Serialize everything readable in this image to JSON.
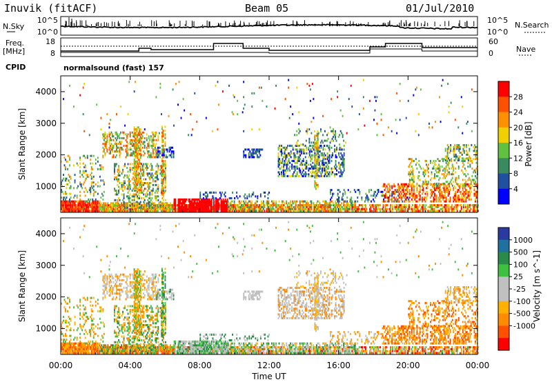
{
  "header": {
    "station": "Inuvik (fitACF)",
    "beam": "Beam 05",
    "date": "01/Jul/2010"
  },
  "noise_panel": {
    "left_label": "N.Sky",
    "left_ticks": [
      "10^5",
      "10^0"
    ],
    "right_label": "N.Search",
    "right_ticks": [
      "10^5",
      "10^0"
    ]
  },
  "freq_panel": {
    "left_label_1": "Freq.",
    "left_label_2": "[MHz]",
    "left_ticks": [
      "18",
      "8"
    ],
    "right_label": "Nave",
    "right_ticks": [
      "60",
      "0"
    ],
    "cpid_label": "CPID",
    "cpid_value": "normalsound (fast) 157"
  },
  "colors": {
    "power_scale": [
      "#0000ff",
      "#2050a0",
      "#3a8a60",
      "#60c040",
      "#f0d000",
      "#ff9000",
      "#ff5000",
      "#ff0000"
    ],
    "velocity_scale": [
      "#ff0000",
      "#ff5000",
      "#ff8c00",
      "#ffb000",
      "#c0c0c0",
      "#c0c0c0",
      "#40c040",
      "#2a8a4a",
      "#2070a0",
      "#2a3aa0"
    ]
  },
  "chart_data": [
    {
      "type": "heatmap",
      "name": "power",
      "ylabel": "Slant Range [km]",
      "ylim": [
        180,
        4500
      ],
      "yticks": [
        "1000",
        "2000",
        "3000",
        "4000"
      ],
      "ytick_values": [
        1000,
        2000,
        3000,
        4000
      ],
      "colorbar_label": "Power [dB]",
      "colorbar_ticks": [
        "4",
        "8",
        "12",
        "16",
        "20",
        "24",
        "28"
      ]
    },
    {
      "type": "heatmap",
      "name": "velocity",
      "ylabel": "Slant Range [km]",
      "ylim": [
        180,
        4500
      ],
      "yticks": [
        "1000",
        "2000",
        "3000",
        "4000"
      ],
      "ytick_values": [
        1000,
        2000,
        3000,
        4000
      ],
      "colorbar_label": "Velocity [m s^-1]",
      "colorbar_ticks": [
        "1000",
        "500",
        "100",
        "25",
        "-25",
        "-100",
        "-500",
        "-1000"
      ]
    }
  ],
  "xaxis": {
    "label": "Time UT",
    "xlim_hours": [
      0,
      24
    ],
    "ticks": [
      "00:00",
      "04:00",
      "08:00",
      "12:00",
      "16:00",
      "20:00",
      "00:00"
    ],
    "tick_hours": [
      0,
      4,
      8,
      12,
      16,
      20,
      24
    ]
  }
}
